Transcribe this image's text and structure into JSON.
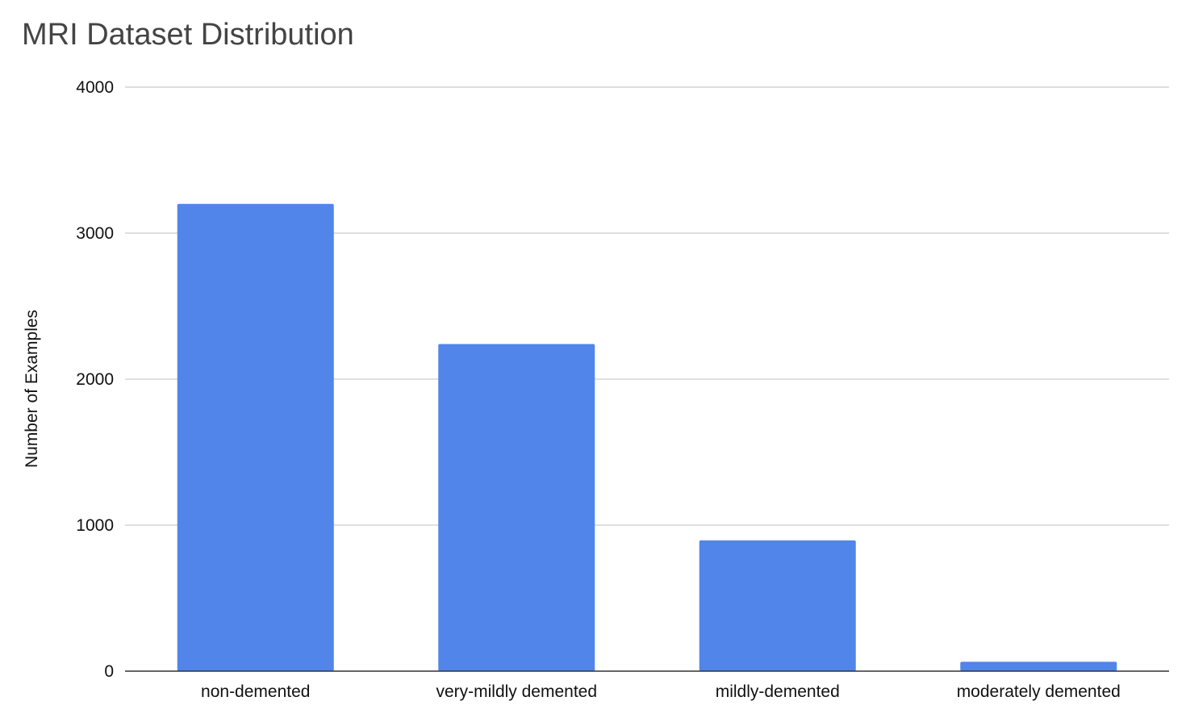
{
  "chart_data": {
    "type": "bar",
    "title": "MRI Dataset Distribution",
    "xlabel": "",
    "ylabel": "Number of Examples",
    "categories": [
      "non-demented",
      "very-mildly demented",
      "mildly-demented",
      "moderately demented"
    ],
    "values": [
      3200,
      2240,
      896,
      64
    ],
    "ylim": [
      0,
      4000
    ],
    "yticks": [
      0,
      1000,
      2000,
      3000,
      4000
    ],
    "grid": true,
    "legend": "none",
    "colors": {
      "bar": "#5185E9",
      "grid": "#CCCCCC",
      "axis": "#333333",
      "title": "#444444"
    }
  }
}
